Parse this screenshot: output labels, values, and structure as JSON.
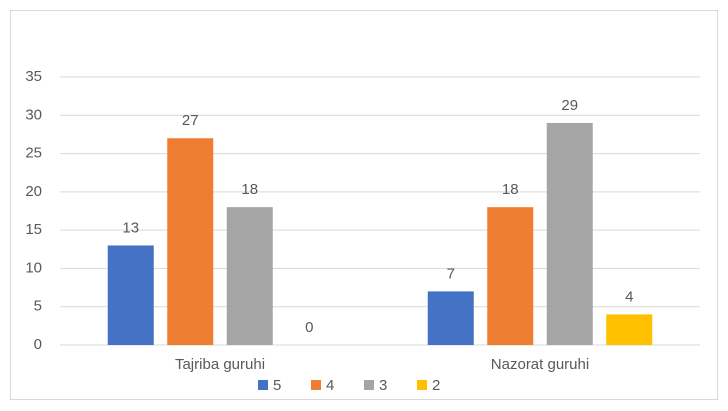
{
  "chart_data": {
    "type": "bar",
    "categories": [
      "Tajriba guruhi",
      "Nazorat guruhi"
    ],
    "series": [
      {
        "name": "5",
        "color": "#4472c4",
        "values": [
          13,
          7
        ]
      },
      {
        "name": "4",
        "color": "#ed7d31",
        "values": [
          27,
          18
        ]
      },
      {
        "name": "3",
        "color": "#a5a5a5",
        "values": [
          18,
          29
        ]
      },
      {
        "name": "2",
        "color": "#ffc000",
        "values": [
          0,
          4
        ]
      }
    ],
    "ylim": [
      0,
      35
    ],
    "yticks": [
      0,
      5,
      10,
      15,
      20,
      25,
      30,
      35
    ],
    "grid": true,
    "legend": "bottom"
  }
}
